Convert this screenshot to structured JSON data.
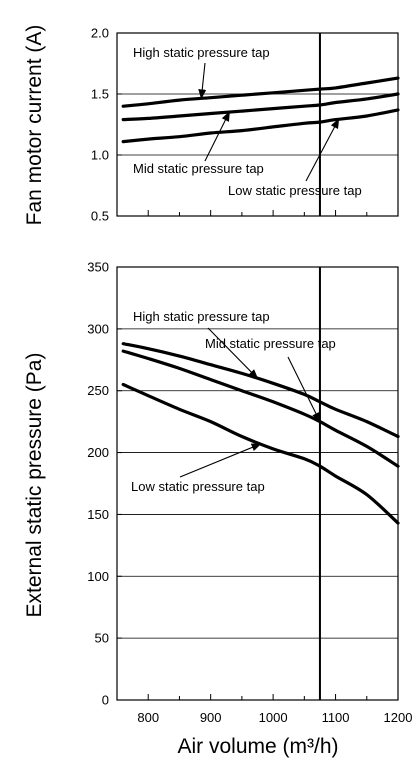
{
  "colors": {
    "line": "#000000",
    "grid": "#000000",
    "background": "#ffffff"
  },
  "chart_data": [
    {
      "type": "line",
      "ylabel": "Fan motor current (A)",
      "xlabel": "",
      "xlim": [
        750,
        1200
      ],
      "ylim": [
        0.5,
        2.0
      ],
      "yticks": [
        "0.5",
        "1.0",
        "1.5",
        "2.0"
      ],
      "yticks_values": [
        0.5,
        1.0,
        1.5,
        2.0
      ],
      "grid": "horizontal",
      "reference_line_x": 1075,
      "series": [
        {
          "name": "High static pressure tap",
          "x": [
            760,
            800,
            850,
            900,
            950,
            1000,
            1050,
            1075,
            1100,
            1150,
            1200
          ],
          "y": [
            1.4,
            1.42,
            1.45,
            1.47,
            1.49,
            1.51,
            1.53,
            1.54,
            1.55,
            1.59,
            1.63
          ]
        },
        {
          "name": "Mid static pressure tap",
          "x": [
            760,
            800,
            850,
            900,
            950,
            1000,
            1050,
            1075,
            1100,
            1150,
            1200
          ],
          "y": [
            1.29,
            1.3,
            1.32,
            1.34,
            1.36,
            1.38,
            1.4,
            1.41,
            1.43,
            1.46,
            1.5
          ]
        },
        {
          "name": "Low static pressure tap",
          "x": [
            760,
            800,
            850,
            900,
            950,
            1000,
            1050,
            1075,
            1100,
            1150,
            1200
          ],
          "y": [
            1.11,
            1.13,
            1.15,
            1.18,
            1.2,
            1.23,
            1.26,
            1.27,
            1.29,
            1.32,
            1.37
          ]
        }
      ],
      "annotations": [
        {
          "text": "High static pressure tap",
          "series": 0
        },
        {
          "text": "Mid static pressure tap",
          "series": 1
        },
        {
          "text": "Low static pressure tap",
          "series": 2
        }
      ]
    },
    {
      "type": "line",
      "ylabel": "External static pressure (Pa)",
      "xlabel": "Air volume (m³/h)",
      "xlim": [
        750,
        1200
      ],
      "ylim": [
        0,
        350
      ],
      "xticks": [
        "800",
        "900",
        "1000",
        "1100",
        "1200"
      ],
      "xticks_values": [
        800,
        900,
        1000,
        1100,
        1200
      ],
      "yticks": [
        "0",
        "50",
        "100",
        "150",
        "200",
        "250",
        "300",
        "350"
      ],
      "yticks_values": [
        0,
        50,
        100,
        150,
        200,
        250,
        300,
        350
      ],
      "grid": "horizontal",
      "reference_line_x": 1075,
      "series": [
        {
          "name": "High static pressure tap",
          "x": [
            760,
            800,
            850,
            900,
            950,
            1000,
            1050,
            1075,
            1100,
            1150,
            1200
          ],
          "y": [
            288,
            284,
            278,
            271,
            264,
            256,
            247,
            241,
            235,
            225,
            213
          ]
        },
        {
          "name": "Mid static pressure tap",
          "x": [
            760,
            800,
            850,
            900,
            950,
            1000,
            1050,
            1075,
            1100,
            1150,
            1200
          ],
          "y": [
            282,
            276,
            268,
            259,
            250,
            241,
            231,
            225,
            218,
            205,
            189
          ]
        },
        {
          "name": "Low static pressure tap",
          "x": [
            760,
            800,
            850,
            900,
            950,
            1000,
            1050,
            1075,
            1100,
            1150,
            1200
          ],
          "y": [
            255,
            246,
            235,
            225,
            213,
            203,
            195,
            189,
            181,
            166,
            143
          ]
        }
      ],
      "annotations": [
        {
          "text": "High static pressure tap",
          "series": 0
        },
        {
          "text": "Mid static pressure tap",
          "series": 1
        },
        {
          "text": "Low static pressure tap",
          "series": 2
        }
      ]
    }
  ]
}
